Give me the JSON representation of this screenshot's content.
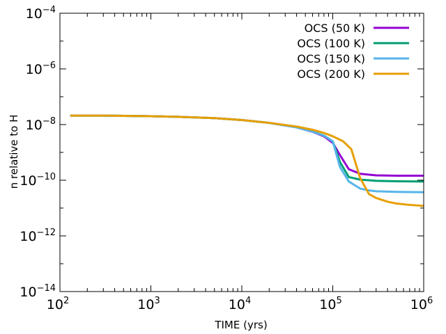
{
  "chart_data": {
    "type": "line",
    "title": "",
    "xlabel": "TIME (yrs)",
    "ylabel": "n relative to H",
    "xscale": "log",
    "yscale": "log",
    "xlim": [
      100,
      1000000
    ],
    "ylim": [
      1e-14,
      0.0001
    ],
    "x_ticks": [
      {
        "base": "10",
        "exp": "2",
        "value": 100
      },
      {
        "base": "10",
        "exp": "3",
        "value": 1000
      },
      {
        "base": "10",
        "exp": "4",
        "value": 10000
      },
      {
        "base": "10",
        "exp": "5",
        "value": 100000
      },
      {
        "base": "10",
        "exp": "6",
        "value": 1000000
      }
    ],
    "y_ticks": [
      {
        "base": "10",
        "exp": "−4",
        "value": 0.0001
      },
      {
        "base": "10",
        "exp": "−6",
        "value": 1e-06
      },
      {
        "base": "10",
        "exp": "−8",
        "value": 1e-08
      },
      {
        "base": "10",
        "exp": "−10",
        "value": 1e-10
      },
      {
        "base": "10",
        "exp": "−12",
        "value": 1e-12
      },
      {
        "base": "10",
        "exp": "−14",
        "value": 1e-14
      }
    ],
    "legend_position": "top-right",
    "grid": false,
    "series": [
      {
        "name": "OCS (50 K)",
        "color": "#9400d3",
        "x": [
          130,
          300,
          1000,
          2000,
          5000,
          10000,
          20000,
          40000,
          60000,
          80000,
          100000,
          120000,
          150000,
          200000,
          300000,
          500000,
          1000000
        ],
        "y": [
          2.1e-08,
          2.1e-08,
          2e-08,
          1.9e-08,
          1.7e-08,
          1.45e-08,
          1.15e-08,
          8e-09,
          5.5e-09,
          3.8e-09,
          2.2e-09,
          8e-10,
          2.5e-10,
          1.7e-10,
          1.5e-10,
          1.45e-10,
          1.45e-10
        ]
      },
      {
        "name": "OCS (100 K)",
        "color": "#009e73",
        "x": [
          130,
          300,
          1000,
          2000,
          5000,
          10000,
          20000,
          40000,
          60000,
          80000,
          100000,
          120000,
          150000,
          200000,
          300000,
          500000,
          1000000
        ],
        "y": [
          2.1e-08,
          2.1e-08,
          2e-08,
          1.9e-08,
          1.7e-08,
          1.45e-08,
          1.15e-08,
          8e-09,
          5.6e-09,
          4e-09,
          2.5e-09,
          4.5e-10,
          1.3e-10,
          1.05e-10,
          9.5e-11,
          9.2e-11,
          9e-11
        ]
      },
      {
        "name": "OCS (150 K)",
        "color": "#56b4e9",
        "x": [
          130,
          300,
          1000,
          2000,
          5000,
          10000,
          20000,
          40000,
          60000,
          80000,
          100000,
          120000,
          150000,
          200000,
          250000,
          300000,
          500000,
          1000000
        ],
        "y": [
          2.1e-08,
          2.1e-08,
          2e-08,
          1.9e-08,
          1.7e-08,
          1.45e-08,
          1.15e-08,
          8e-09,
          5.6e-09,
          4e-09,
          2.5e-09,
          3e-10,
          9e-11,
          5e-11,
          4.3e-11,
          4e-11,
          3.8e-11,
          3.7e-11
        ]
      },
      {
        "name": "OCS (200 K)",
        "color": "#e69f00",
        "x": [
          130,
          300,
          1000,
          2000,
          5000,
          10000,
          20000,
          40000,
          60000,
          80000,
          100000,
          130000,
          160000,
          200000,
          250000,
          300000,
          400000,
          500000,
          700000,
          1000000
        ],
        "y": [
          2.1e-08,
          2.1e-08,
          2e-08,
          1.9e-08,
          1.7e-08,
          1.45e-08,
          1.15e-08,
          8.5e-09,
          6.5e-09,
          5e-09,
          3.8e-09,
          2.5e-09,
          1.3e-09,
          1.2e-10,
          3.2e-11,
          2.3e-11,
          1.7e-11,
          1.45e-11,
          1.3e-11,
          1.2e-11
        ]
      }
    ]
  }
}
